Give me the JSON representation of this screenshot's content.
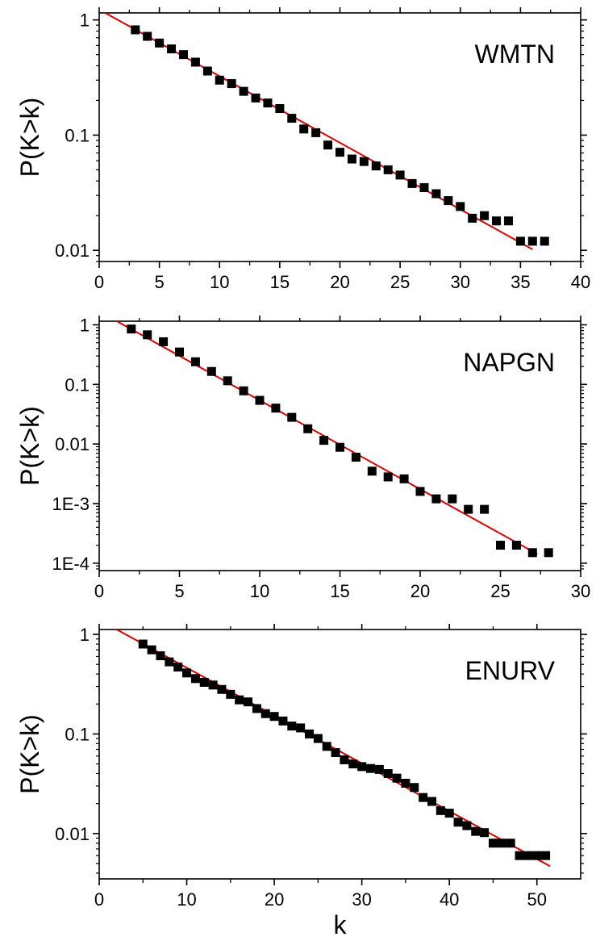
{
  "chart_data": [
    {
      "type": "scatter",
      "title": "",
      "annotation": "WMTN",
      "xlabel": "",
      "ylabel": "P(K>k)",
      "xlim": [
        0,
        40
      ],
      "ylim": [
        0.008,
        1.15
      ],
      "yscale": "log",
      "xticks": [
        0,
        5,
        10,
        15,
        20,
        25,
        30,
        35,
        40
      ],
      "xtick_labels": [
        "0",
        "5",
        "10",
        "15",
        "20",
        "25",
        "30",
        "35",
        "40"
      ],
      "yticks": [
        1,
        0.1,
        0.01
      ],
      "ytick_labels": [
        "1",
        "0.1",
        "0.01"
      ],
      "grid": false,
      "series": [
        {
          "kind": "markers",
          "marker": "square",
          "color": "#000000",
          "x": [
            3,
            4,
            5,
            6,
            7,
            8,
            9,
            10,
            11,
            12,
            13,
            14,
            15,
            16,
            17,
            18,
            19,
            20,
            21,
            22,
            23,
            24,
            25,
            26,
            27,
            28,
            29,
            30,
            31,
            32,
            33,
            34,
            35,
            36,
            37
          ],
          "y": [
            0.82,
            0.72,
            0.63,
            0.56,
            0.5,
            0.43,
            0.36,
            0.3,
            0.28,
            0.24,
            0.21,
            0.19,
            0.17,
            0.14,
            0.113,
            0.105,
            0.082,
            0.071,
            0.062,
            0.059,
            0.054,
            0.05,
            0.045,
            0.038,
            0.035,
            0.031,
            0.027,
            0.024,
            0.019,
            0.02,
            0.018,
            0.018,
            0.012,
            0.012,
            0.012
          ]
        },
        {
          "kind": "line",
          "color": "#e00000",
          "x": [
            0.5,
            36
          ],
          "y": [
            1.15,
            0.0102
          ]
        }
      ]
    },
    {
      "type": "scatter",
      "title": "",
      "annotation": "NAPGN",
      "xlabel": "",
      "ylabel": "P(K>k)",
      "xlim": [
        0,
        30
      ],
      "ylim": [
        7.5e-05,
        1.15
      ],
      "yscale": "log",
      "xticks": [
        0,
        5,
        10,
        15,
        20,
        25,
        30
      ],
      "xtick_labels": [
        "0",
        "5",
        "10",
        "15",
        "20",
        "25",
        "30"
      ],
      "yticks": [
        1,
        0.1,
        0.01,
        0.001,
        0.0001
      ],
      "ytick_labels": [
        "1",
        "0.1",
        "0.01",
        "1E-3",
        "1E-4"
      ],
      "grid": false,
      "series": [
        {
          "kind": "markers",
          "marker": "square",
          "color": "#000000",
          "x": [
            2,
            3,
            4,
            5,
            6,
            7,
            8,
            9,
            10,
            11,
            12,
            13,
            14,
            15,
            16,
            17,
            18,
            19,
            20,
            21,
            22,
            23,
            24,
            25,
            26,
            27,
            28
          ],
          "y": [
            0.85,
            0.68,
            0.52,
            0.35,
            0.24,
            0.165,
            0.115,
            0.078,
            0.054,
            0.04,
            0.028,
            0.018,
            0.0115,
            0.0088,
            0.006,
            0.0035,
            0.0028,
            0.0026,
            0.0016,
            0.0012,
            0.0012,
            0.0008,
            0.0008,
            0.0002,
            0.0002,
            0.00015,
            0.00015
          ]
        },
        {
          "kind": "line",
          "color": "#e00000",
          "x": [
            1.1,
            27.3
          ],
          "y": [
            1.15,
            0.000142
          ]
        }
      ]
    },
    {
      "type": "scatter",
      "title": "",
      "annotation": "ENURV",
      "xlabel": "k",
      "ylabel": "P(K>k)",
      "xlim": [
        0,
        55
      ],
      "ylim": [
        0.0035,
        1.12
      ],
      "yscale": "log",
      "xticks": [
        0,
        10,
        20,
        30,
        40,
        50
      ],
      "xtick_labels": [
        "0",
        "10",
        "20",
        "30",
        "40",
        "50"
      ],
      "yticks": [
        1,
        0.1,
        0.01
      ],
      "ytick_labels": [
        "1",
        "0.1",
        "0.01"
      ],
      "grid": false,
      "series": [
        {
          "kind": "markers",
          "marker": "square",
          "color": "#000000",
          "x": [
            5,
            6,
            7,
            8,
            9,
            10,
            11,
            12,
            13,
            14,
            15,
            16,
            17,
            18,
            19,
            20,
            21,
            22,
            23,
            24,
            25,
            26,
            27,
            28,
            29,
            30,
            31,
            32,
            33,
            34,
            35,
            36,
            37,
            38,
            39,
            40,
            41,
            42,
            43,
            44,
            45,
            46,
            47,
            48,
            49,
            50,
            51
          ],
          "y": [
            0.8,
            0.7,
            0.61,
            0.53,
            0.47,
            0.41,
            0.36,
            0.33,
            0.31,
            0.28,
            0.25,
            0.22,
            0.21,
            0.18,
            0.16,
            0.15,
            0.135,
            0.12,
            0.115,
            0.1,
            0.09,
            0.075,
            0.065,
            0.055,
            0.05,
            0.047,
            0.045,
            0.044,
            0.04,
            0.036,
            0.032,
            0.029,
            0.023,
            0.021,
            0.017,
            0.016,
            0.013,
            0.012,
            0.0105,
            0.0102,
            0.008,
            0.008,
            0.008,
            0.006,
            0.006,
            0.006,
            0.006
          ]
        },
        {
          "kind": "line",
          "color": "#e00000",
          "x": [
            2,
            51.5
          ],
          "y": [
            1.12,
            0.0047
          ]
        }
      ]
    }
  ]
}
